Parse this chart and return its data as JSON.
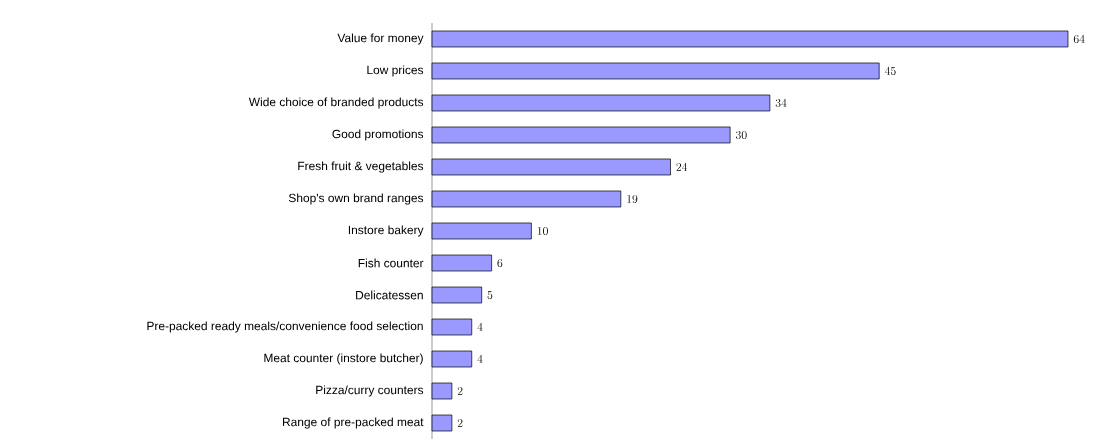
{
  "chart_data": {
    "type": "bar",
    "orientation": "horizontal",
    "categories": [
      "Value for money",
      "Low prices",
      "Wide choice of branded products",
      "Good promotions",
      "Fresh fruit & vegetables",
      "Shop's own brand ranges",
      "Instore bakery",
      "Fish counter",
      "Delicatessen",
      "Pre-packed ready meals/convenience food selection",
      "Meat counter (instore butcher)",
      "Pizza/curry counters",
      "Range of pre-packed meat"
    ],
    "values": [
      64,
      45,
      34,
      30,
      24,
      19,
      10,
      6,
      5,
      4,
      4,
      2,
      2
    ],
    "color": "#9999ff",
    "data_labels": true
  }
}
